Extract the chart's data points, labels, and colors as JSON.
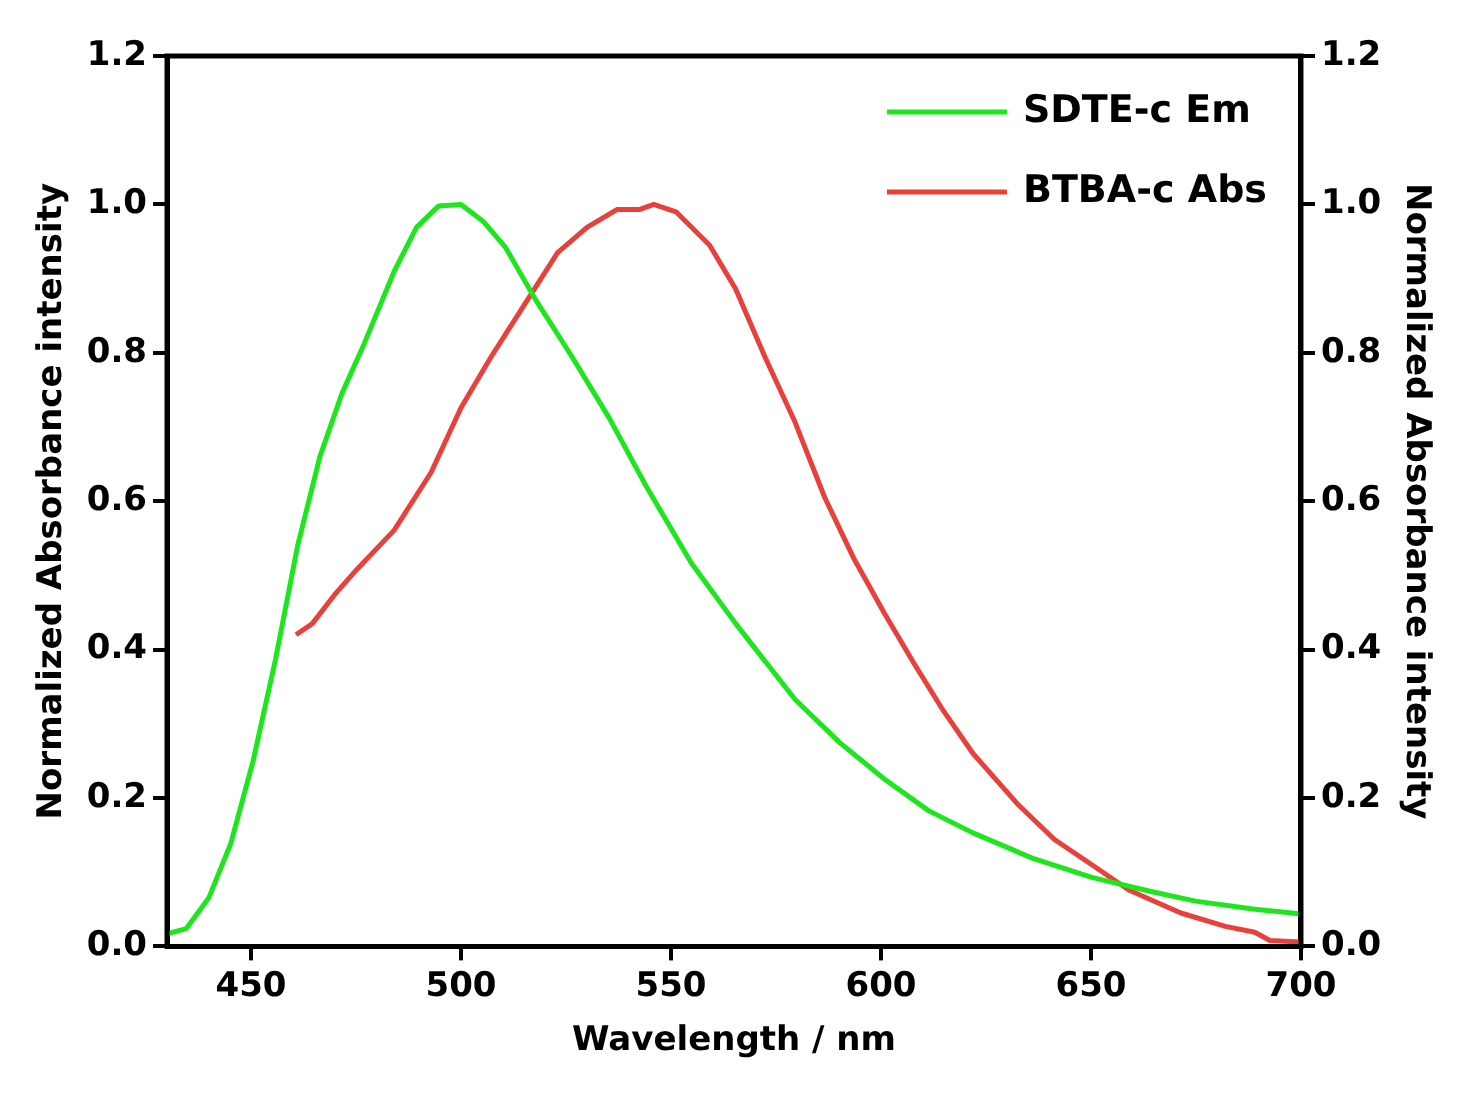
{
  "chart_data": {
    "type": "line",
    "xlabel": "Wavelength / nm",
    "ylabel": "Normalized Absorbance intensity",
    "y2label": "Normalized Absorbance intensity",
    "xlim": [
      430,
      700
    ],
    "xticks": [
      450,
      500,
      550,
      600,
      650,
      700
    ],
    "ylim": [
      0,
      1.2
    ],
    "yticks": [
      {
        "value": 0,
        "label": "0.0"
      },
      0.2,
      0.4,
      0.6,
      0.8,
      {
        "value": 1,
        "label": "1.0"
      },
      {
        "value": 1.2,
        "label": "1.2"
      }
    ],
    "y2lim": [
      0,
      1.2
    ],
    "y2ticks": [
      {
        "value": 0,
        "label": "0.0"
      },
      0.2,
      0.4,
      0.6,
      0.8,
      {
        "value": 1,
        "label": "1.0"
      },
      {
        "value": 1.2,
        "label": "1.2"
      }
    ],
    "grid": false,
    "legend": "top right",
    "marker": "none",
    "line_style": "solid",
    "series": [
      {
        "name": "SDTE-c Em",
        "color": "#1ee61e",
        "x": [
          430,
          434.6,
          440,
          445.2,
          450.5,
          455.8,
          461.1,
          466.4,
          471.7,
          477,
          484.1,
          489.4,
          494.7,
          500,
          505.3,
          510.6,
          517.7,
          526.5,
          535.3,
          544.2,
          554.8,
          565.4,
          579.5,
          590.1,
          600.7,
          611.3,
          621.9,
          636,
          650.2,
          664.3,
          674.9,
          689,
          699.6
        ],
        "values": [
          0.017,
          0.024,
          0.066,
          0.139,
          0.25,
          0.386,
          0.54,
          0.66,
          0.746,
          0.813,
          0.91,
          0.969,
          0.998,
          1.0,
          0.977,
          0.942,
          0.872,
          0.794,
          0.712,
          0.619,
          0.517,
          0.435,
          0.333,
          0.275,
          0.226,
          0.183,
          0.153,
          0.119,
          0.093,
          0.074,
          0.061,
          0.05,
          0.044
        ]
      },
      {
        "name": "BTBA-c Abs",
        "color": "#e8413c",
        "x": [
          460.7,
          464.6,
          469.9,
          475.2,
          484.1,
          492.9,
          500,
          507.1,
          515.9,
          523,
          530,
          537.1,
          542.4,
          545.9,
          551.2,
          559.2,
          565.4,
          572.4,
          579.5,
          586.6,
          593.6,
          600.7,
          607.8,
          614.8,
          621.9,
          632.5,
          641.3,
          650.2,
          659,
          671.4,
          682,
          689,
          692.6,
          699.6
        ],
        "values": [
          0.42,
          0.435,
          0.474,
          0.508,
          0.561,
          0.639,
          0.726,
          0.794,
          0.872,
          0.935,
          0.969,
          0.993,
          0.993,
          1.0,
          0.99,
          0.945,
          0.886,
          0.794,
          0.707,
          0.605,
          0.522,
          0.45,
          0.382,
          0.318,
          0.26,
          0.192,
          0.144,
          0.11,
          0.076,
          0.045,
          0.027,
          0.019,
          0.008,
          0.006
        ]
      }
    ]
  }
}
